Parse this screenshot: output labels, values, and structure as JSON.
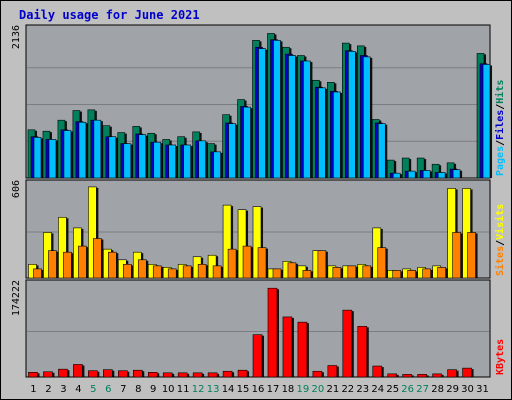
{
  "colors": {
    "background": "#C0C0C0",
    "panel": "#A0A4A8",
    "title": "#0000CC",
    "hits": "#00805C",
    "files": "#0000CC",
    "pages": "#00BFFF",
    "visits": "#FFFF00",
    "sites": "#FF8000",
    "kbytes": "#FF0000",
    "weekend": "#00805C",
    "weekday": "#000000"
  },
  "chart_data": {
    "type": "bar",
    "title": "Daily usage for June 2021",
    "categories": [
      "1",
      "2",
      "3",
      "4",
      "5",
      "6",
      "7",
      "8",
      "9",
      "10",
      "11",
      "12",
      "13",
      "14",
      "15",
      "16",
      "17",
      "18",
      "19",
      "20",
      "21",
      "22",
      "23",
      "24",
      "25",
      "26",
      "27",
      "28",
      "29",
      "30",
      "31"
    ],
    "weekend_days": [
      "5",
      "6",
      "12",
      "13",
      "19",
      "20",
      "26",
      "27"
    ],
    "panels": [
      {
        "name": "hits-files-pages",
        "ymax_label": "2136",
        "ymax": 2136,
        "axis_labels": [
          "Pages",
          "/",
          "Files",
          "/",
          "Hits"
        ],
        "series": [
          {
            "name": "Hits",
            "color": "#00805C",
            "values": [
              700,
              680,
              840,
              980,
              990,
              760,
              660,
              750,
              650,
              560,
              600,
              670,
              500,
              920,
              1140,
              2000,
              2100,
              1900,
              1780,
              1420,
              1390,
              1960,
              1920,
              850,
              260,
              290,
              290,
              200,
              220,
              0,
              1810
            ]
          },
          {
            "name": "Files",
            "color": "#0000CC",
            "values": [
              600,
              560,
              700,
              820,
              840,
              600,
              500,
              640,
              520,
              480,
              480,
              540,
              380,
              800,
              1040,
              1900,
              2010,
              1800,
              1700,
              1320,
              1260,
              1850,
              1780,
              800,
              70,
              100,
              110,
              80,
              130,
              0,
              1660
            ]
          },
          {
            "name": "Pages",
            "color": "#00BFFF",
            "values": [
              590,
              560,
              690,
              810,
              840,
              600,
              500,
              630,
              520,
              480,
              480,
              540,
              380,
              790,
              1030,
              1880,
              2000,
              1780,
              1700,
              1310,
              1250,
              1840,
              1760,
              790,
              70,
              100,
              110,
              80,
              120,
              0,
              1650
            ]
          }
        ]
      },
      {
        "name": "visits-sites",
        "ymax_label": "606",
        "ymax": 606,
        "axis_labels": [
          "Sites",
          "/",
          "Visits"
        ],
        "series": [
          {
            "name": "Visits",
            "color": "#FFFF00",
            "values": [
              90,
              300,
              400,
              330,
              600,
              190,
              120,
              170,
              90,
              70,
              90,
              140,
              150,
              480,
              450,
              470,
              60,
              110,
              80,
              180,
              80,
              80,
              90,
              330,
              50,
              60,
              70,
              80,
              590,
              590,
              0
            ]
          },
          {
            "name": "Sites",
            "color": "#FF8000",
            "values": [
              60,
              180,
              170,
              210,
              260,
              170,
              90,
              120,
              80,
              60,
              80,
              90,
              80,
              190,
              210,
              200,
              60,
              100,
              50,
              180,
              70,
              80,
              80,
              200,
              50,
              50,
              60,
              70,
              300,
              300,
              0
            ]
          }
        ]
      },
      {
        "name": "kbytes",
        "ymax_label": "174222",
        "ymax": 174222,
        "axis_labels": [
          "KBytes"
        ],
        "series": [
          {
            "name": "KBytes",
            "color": "#FF0000",
            "values": [
              9000,
              10000,
              15000,
              24000,
              12000,
              14000,
              12000,
              13000,
              9000,
              8000,
              8000,
              8000,
              8000,
              11000,
              13000,
              81000,
              170000,
              115000,
              105000,
              11000,
              22000,
              128000,
              97000,
              21000,
              6000,
              5000,
              5000,
              6000,
              14000,
              17000,
              0
            ]
          }
        ]
      }
    ]
  }
}
